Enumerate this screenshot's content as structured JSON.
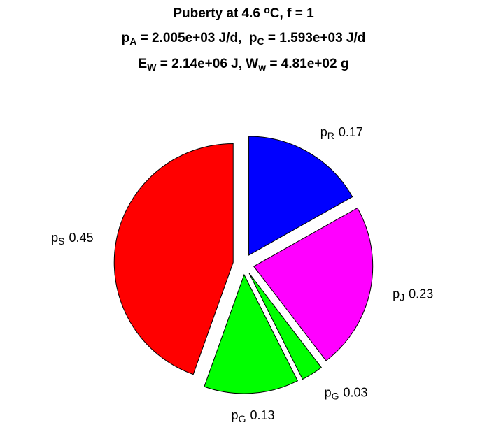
{
  "chart_data": {
    "type": "pie",
    "title_lines": [
      [
        {
          "text": "Puberty at 4.6 "
        },
        {
          "text": "o",
          "shift": "sup"
        },
        {
          "text": "C, f = 1"
        }
      ],
      [
        {
          "text": "p"
        },
        {
          "text": "A",
          "shift": "sub"
        },
        {
          "text": " = 2.005e+03 J/d,  p"
        },
        {
          "text": "C",
          "shift": "sub"
        },
        {
          "text": " = 1.593e+03 J/d"
        }
      ],
      [
        {
          "text": "E"
        },
        {
          "text": "W",
          "shift": "sub"
        },
        {
          "text": " = 2.14e+06 J, W"
        },
        {
          "text": "w",
          "shift": "sub"
        },
        {
          "text": " = 4.81e+02 g"
        }
      ]
    ],
    "labels": [
      {
        "symbol": "p",
        "subscript": "S"
      },
      {
        "symbol": "p",
        "subscript": "G"
      },
      {
        "symbol": "p",
        "subscript": "G"
      },
      {
        "symbol": "p",
        "subscript": "J"
      },
      {
        "symbol": "p",
        "subscript": "R"
      }
    ],
    "values": [
      0.45,
      0.13,
      0.03,
      0.23,
      0.17
    ],
    "colors": [
      "#ff0000",
      "#00ff00",
      "#00ff00",
      "#ff00ff",
      "#0000ff"
    ],
    "explode": true
  }
}
